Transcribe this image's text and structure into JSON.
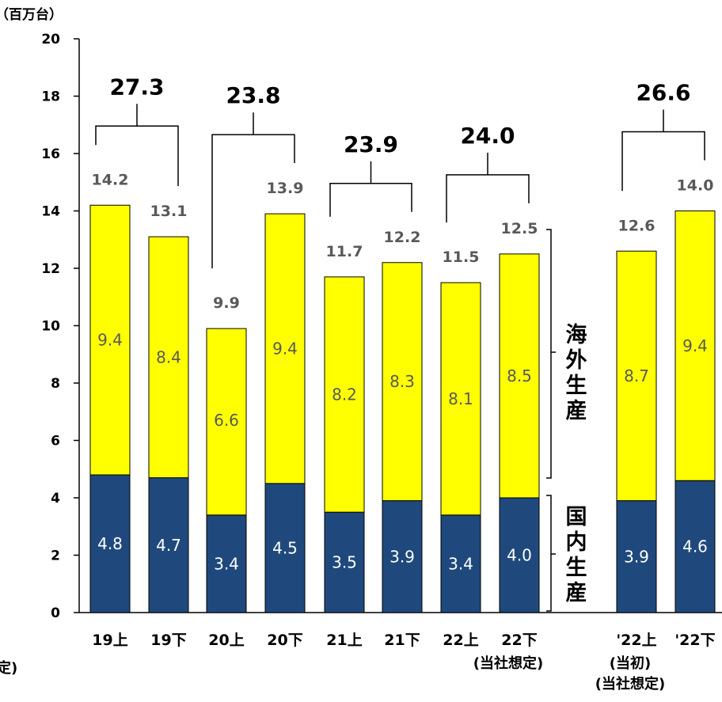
{
  "chart_data": {
    "type": "bar",
    "stacked": true,
    "unit_label": "（百万台）",
    "categories": [
      "19上",
      "19下",
      "20上",
      "20下",
      "21上",
      "21下",
      "22上",
      "22下",
      "'22上",
      "'22下"
    ],
    "category_sublabels": [
      {
        "under": 7,
        "text": "(当社想定)"
      },
      {
        "under": 8,
        "text": "(当初)"
      },
      {
        "under": 8,
        "text": "(当社想定)"
      }
    ],
    "edge_fragment": "定)",
    "series": [
      {
        "name": "国内生産",
        "color": "#1F497D",
        "values": [
          4.8,
          4.7,
          3.4,
          4.5,
          3.5,
          3.9,
          3.4,
          4.0,
          3.9,
          4.6
        ]
      },
      {
        "name": "海外生産",
        "color": "#FFFF00",
        "values": [
          9.4,
          8.4,
          6.6,
          9.4,
          8.2,
          8.3,
          8.1,
          8.5,
          8.7,
          9.4
        ]
      }
    ],
    "totals": [
      14.2,
      13.1,
      9.9,
      13.9,
      11.7,
      12.2,
      11.5,
      12.5,
      12.6,
      14.0
    ],
    "domestic_labels": [
      "4.8",
      "4.7",
      "3.4",
      "4.5",
      "3.5",
      "3.9",
      "3.4",
      "4.0",
      "3.9",
      "4.6"
    ],
    "overseas_labels": [
      "9.4",
      "8.4",
      "6.6",
      "9.4",
      "8.2",
      "8.3",
      "8.1",
      "8.5",
      "8.7",
      "9.4"
    ],
    "total_labels": [
      "14.2",
      "13.1",
      "9.9",
      "13.9",
      "11.7",
      "12.2",
      "11.5",
      "12.5",
      "12.6",
      "14.0"
    ],
    "annual_totals": [
      {
        "from": 0,
        "to": 1,
        "label": "27.3"
      },
      {
        "from": 2,
        "to": 3,
        "label": "23.8"
      },
      {
        "from": 4,
        "to": 5,
        "label": "23.9"
      },
      {
        "from": 6,
        "to": 7,
        "label": "24.0"
      },
      {
        "from": 8,
        "to": 9,
        "label": "26.6"
      }
    ],
    "yticks": [
      "0",
      "2",
      "4",
      "6",
      "8",
      "10",
      "12",
      "14",
      "16",
      "18",
      "20"
    ],
    "ylim": [
      0,
      20
    ],
    "side_labels": {
      "overseas": "海外生産",
      "domestic": "国内生産"
    },
    "grid": false
  }
}
